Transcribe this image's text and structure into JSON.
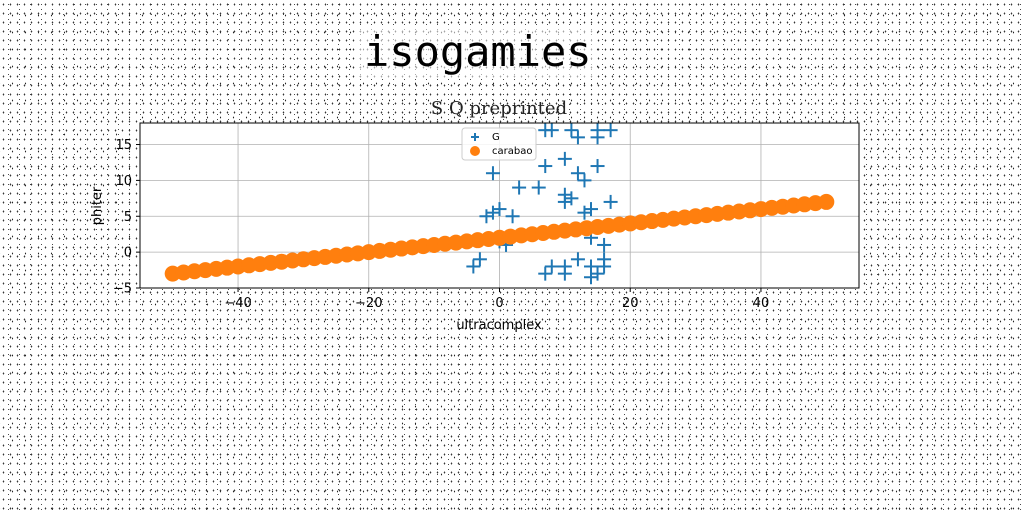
{
  "page": {
    "title": "isogamies"
  },
  "chart_data": {
    "type": "scatter",
    "title": "S Q preprinted",
    "xlabel": "ultracomplex",
    "ylabel": "phiter",
    "xlim": [
      -55,
      55
    ],
    "ylim": [
      -5,
      18
    ],
    "xticks": [
      -40,
      -20,
      0,
      20,
      40
    ],
    "yticks": [
      -5,
      0,
      5,
      10,
      15
    ],
    "grid": true,
    "legend_position": "upper center",
    "series": [
      {
        "name": "G",
        "marker": "plus",
        "color": "#1f77b4",
        "points": [
          [
            -4,
            -2
          ],
          [
            -3,
            -1
          ],
          [
            -2,
            5
          ],
          [
            -1,
            11
          ],
          [
            -1,
            5.5
          ],
          [
            0,
            6
          ],
          [
            0,
            1.5
          ],
          [
            1,
            1
          ],
          [
            2,
            5
          ],
          [
            3,
            9
          ],
          [
            6,
            9
          ],
          [
            7,
            -3
          ],
          [
            7,
            12
          ],
          [
            8,
            -2
          ],
          [
            8,
            17
          ],
          [
            7,
            17
          ],
          [
            10,
            -2
          ],
          [
            10,
            -3
          ],
          [
            10,
            7
          ],
          [
            10,
            8
          ],
          [
            10,
            13
          ],
          [
            11,
            7.5
          ],
          [
            11,
            17
          ],
          [
            12,
            -1
          ],
          [
            12,
            16
          ],
          [
            12,
            11
          ],
          [
            13,
            10
          ],
          [
            13,
            5.5
          ],
          [
            14,
            6
          ],
          [
            14,
            -2
          ],
          [
            14,
            -3.5
          ],
          [
            14,
            2
          ],
          [
            15,
            17
          ],
          [
            15,
            16
          ],
          [
            15,
            12
          ],
          [
            15,
            -3
          ],
          [
            16,
            1
          ],
          [
            16,
            -1
          ],
          [
            16,
            -2
          ],
          [
            17,
            7
          ],
          [
            17,
            17
          ]
        ]
      },
      {
        "name": "carabao",
        "marker": "circle",
        "color": "#ff7f0e",
        "x_start": -50,
        "x_end": 50,
        "y_start": -3,
        "y_end": 7,
        "count": 61
      }
    ]
  }
}
